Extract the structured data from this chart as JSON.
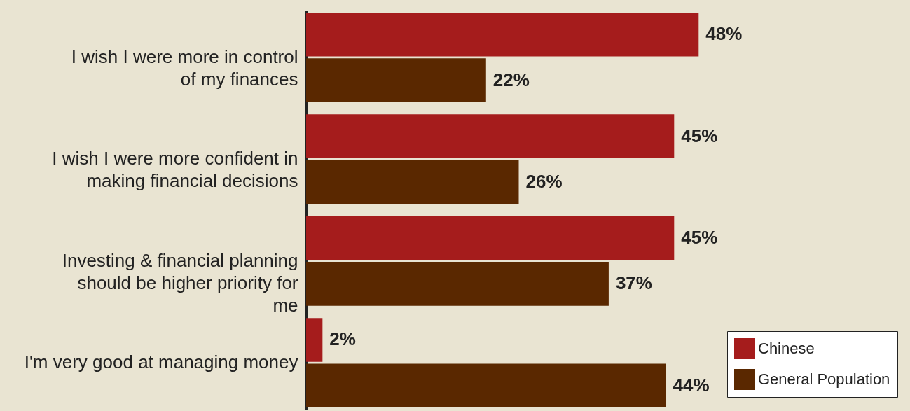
{
  "chart_data": {
    "type": "bar",
    "orientation": "horizontal",
    "categories": [
      "I wish I were more in control of my finances",
      "I wish I were more confident in making financial decisions",
      "Investing & financial planning should be higher priority for me",
      "I'm very good at managing money"
    ],
    "series": [
      {
        "name": "Chinese",
        "color": "#a51c1c",
        "values": [
          48,
          45,
          45,
          2
        ],
        "value_labels": [
          "48%",
          "45%",
          "45%",
          "2%"
        ]
      },
      {
        "name": "General Population",
        "color": "#5a2800",
        "values": [
          22,
          26,
          37,
          44
        ],
        "value_labels": [
          "22%",
          "26%",
          "37%",
          "44%"
        ]
      }
    ],
    "legend": "bottom right"
  }
}
